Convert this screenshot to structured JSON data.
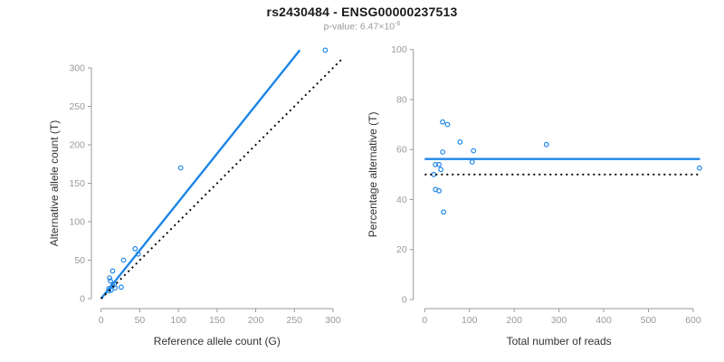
{
  "header": {
    "title": "rs2430484 - ENSG00000237513",
    "subtitle_prefix": "p-value: 6.47×10",
    "subtitle_exponent": "-6"
  },
  "colors": {
    "accent_blue": "#1E86E8",
    "dotted_black": "#000000",
    "axis_gray": "#9a9a9a",
    "axis_title_dark": "#333333"
  },
  "chart_data": [
    {
      "name": "allele-count-scatter",
      "type": "scatter",
      "marker": "open-circle",
      "xlabel": "Reference allele count (G)",
      "ylabel": "Alternative allele count (T)",
      "xlim": [
        0,
        300
      ],
      "ylim": [
        0,
        300
      ],
      "xticks": [
        0,
        50,
        100,
        150,
        200,
        250,
        300
      ],
      "yticks": [
        0,
        50,
        100,
        150,
        200,
        250,
        300
      ],
      "grid": false,
      "legend": null,
      "points": [
        [
          290,
          323
        ],
        [
          103,
          170
        ],
        [
          44,
          65
        ],
        [
          48,
          58
        ],
        [
          29,
          50
        ],
        [
          15,
          36
        ],
        [
          11,
          27
        ],
        [
          12,
          23
        ],
        [
          17,
          19
        ],
        [
          15,
          17
        ],
        [
          18,
          14
        ],
        [
          26,
          15
        ],
        [
          13,
          11
        ],
        [
          10,
          13
        ],
        [
          10,
          10
        ]
      ],
      "lines": [
        {
          "name": "regression-line",
          "style": "solid",
          "color": "#1E86E8",
          "from": [
            0,
            0
          ],
          "to": [
            257,
            323
          ]
        },
        {
          "name": "identity-line",
          "style": "dotted",
          "color": "#000000",
          "from": [
            0,
            0
          ],
          "to": [
            311,
            311
          ]
        }
      ]
    },
    {
      "name": "percentage-scatter",
      "type": "scatter",
      "marker": "open-circle",
      "xlabel": "Total number of reads",
      "ylabel": "Percentage alternative (T)",
      "xlim": [
        0,
        600
      ],
      "ylim": [
        0,
        100
      ],
      "xticks": [
        0,
        100,
        200,
        300,
        400,
        500,
        600
      ],
      "yticks": [
        0,
        20,
        40,
        60,
        80,
        100
      ],
      "grid": false,
      "legend": null,
      "points": [
        [
          40,
          71
        ],
        [
          51,
          70
        ],
        [
          79,
          63
        ],
        [
          272,
          62
        ],
        [
          109,
          59.5
        ],
        [
          40,
          59
        ],
        [
          106,
          55
        ],
        [
          24,
          54
        ],
        [
          32,
          54
        ],
        [
          36,
          52
        ],
        [
          20,
          50
        ],
        [
          24,
          44
        ],
        [
          32,
          43.5
        ],
        [
          42,
          35
        ],
        [
          614,
          52.6
        ]
      ],
      "lines": [
        {
          "name": "mean-percentage-line",
          "style": "solid",
          "color": "#1E86E8",
          "from": [
            0,
            56.2
          ],
          "to": [
            615,
            56.2
          ]
        },
        {
          "name": "fifty-percent-line",
          "style": "dotted",
          "color": "#000000",
          "from": [
            0,
            50
          ],
          "to": [
            613,
            50
          ]
        }
      ]
    }
  ]
}
